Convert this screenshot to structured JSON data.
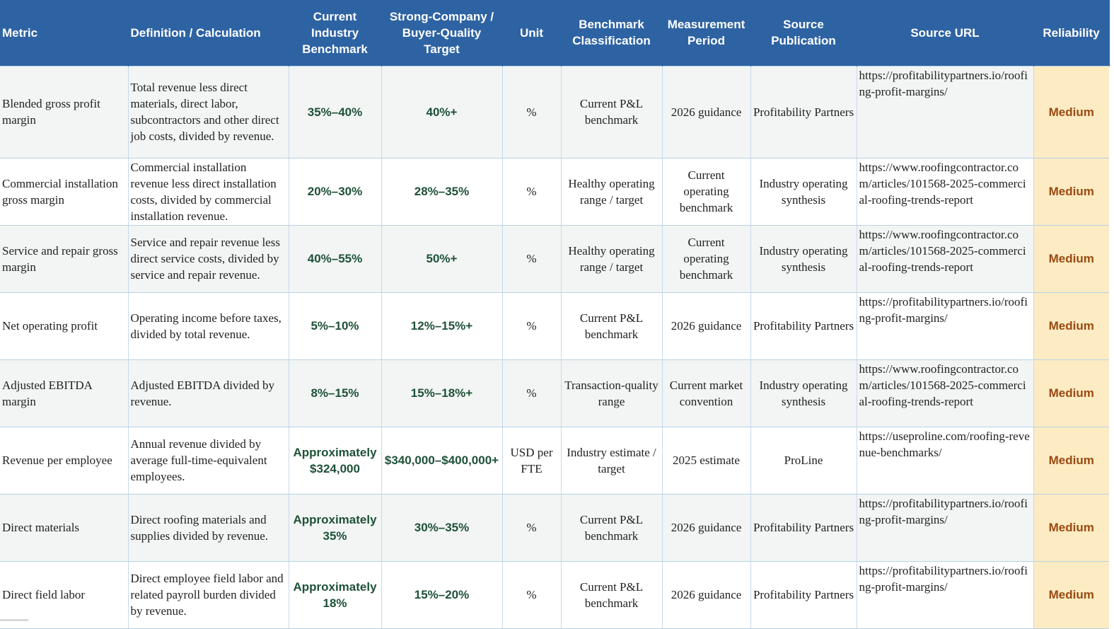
{
  "headers": {
    "metric": "Metric",
    "definition": "Definition / Calculation",
    "benchmark": "Current Industry Benchmark",
    "target": "Strong-Company / Buyer-Quality Target",
    "unit": "Unit",
    "classification": "Benchmark Classification",
    "period": "Measurement Period",
    "source": "Source Publication",
    "url": "Source URL",
    "reliability": "Reliability"
  },
  "rows": [
    {
      "metric": "Blended gross profit margin",
      "definition": "Total revenue less direct materials, direct labor, subcontractors and other direct job costs, divided by revenue.",
      "benchmark": "35%–40%",
      "target": "40%+",
      "unit": "%",
      "classification": "Current P&L benchmark",
      "period": "2026 guidance",
      "source": "Profitability Partners",
      "url": "https://profitabilitypartners.io/roofing-profit-margins/",
      "reliability": "Medium"
    },
    {
      "metric": "Commercial installation gross margin",
      "definition": "Commercial installation revenue less direct installation costs, divided by commercial installation revenue.",
      "benchmark": "20%–30%",
      "target": "28%–35%",
      "unit": "%",
      "classification": "Healthy operating range / target",
      "period": "Current operating benchmark",
      "source": "Industry operating synthesis",
      "url": "https://www.roofingcontractor.com/articles/101568-2025-commercial-roofing-trends-report",
      "reliability": "Medium"
    },
    {
      "metric": "Service and repair gross margin",
      "definition": "Service and repair revenue less direct service costs, divided by service and repair revenue.",
      "benchmark": "40%–55%",
      "target": "50%+",
      "unit": "%",
      "classification": "Healthy operating range / target",
      "period": "Current operating benchmark",
      "source": "Industry operating synthesis",
      "url": "https://www.roofingcontractor.com/articles/101568-2025-commercial-roofing-trends-report",
      "reliability": "Medium"
    },
    {
      "metric": "Net operating profit",
      "definition": "Operating income before taxes, divided by total revenue.",
      "benchmark": "5%–10%",
      "target": "12%–15%+",
      "unit": "%",
      "classification": "Current P&L benchmark",
      "period": "2026 guidance",
      "source": "Profitability Partners",
      "url": "https://profitabilitypartners.io/roofing-profit-margins/",
      "reliability": "Medium"
    },
    {
      "metric": "Adjusted EBITDA margin",
      "definition": "Adjusted EBITDA divided by revenue.",
      "benchmark": "8%–15%",
      "target": "15%–18%+",
      "unit": "%",
      "classification": "Transaction-quality range",
      "period": "Current market convention",
      "source": "Industry operating synthesis",
      "url": "https://www.roofingcontractor.com/articles/101568-2025-commercial-roofing-trends-report",
      "reliability": "Medium"
    },
    {
      "metric": "Revenue per employee",
      "definition": "Annual revenue divided by average full-time-equivalent employees.",
      "benchmark": "Approximately $324,000",
      "target": "$340,000–$400,000+",
      "unit": "USD per FTE",
      "classification": "Industry estimate / target",
      "period": "2025 estimate",
      "source": "ProLine",
      "url": "https://useproline.com/roofing-revenue-benchmarks/",
      "reliability": "Medium"
    },
    {
      "metric": "Direct materials",
      "definition": "Direct roofing materials and supplies divided by revenue.",
      "benchmark": "Approximately 35%",
      "target": "30%–35%",
      "unit": "%",
      "classification": "Current P&L benchmark",
      "period": "2026 guidance",
      "source": "Profitability Partners",
      "url": "https://profitabilitypartners.io/roofing-profit-margins/",
      "reliability": "Medium"
    },
    {
      "metric": "Direct field labor",
      "definition": "Direct employee field labor and related payroll burden divided by revenue.",
      "benchmark": "Approximately 18%",
      "target": "15%–20%",
      "unit": "%",
      "classification": "Current P&L benchmark",
      "period": "2026 guidance",
      "source": "Profitability Partners",
      "url": "https://profitabilitypartners.io/roofing-profit-margins/",
      "reliability": "Medium"
    }
  ]
}
